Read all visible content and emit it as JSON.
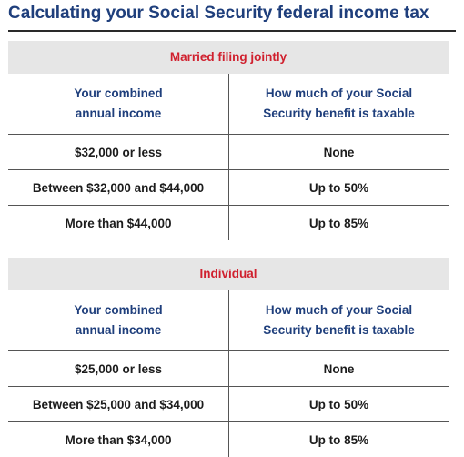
{
  "title": "Calculating your Social Security federal income tax",
  "tables": [
    {
      "section": "Married filing jointly",
      "col_left": [
        "Your combined",
        "annual income"
      ],
      "col_right": [
        "How much of your Social",
        "Security benefit is taxable"
      ],
      "rows": [
        {
          "income": "$32,000 or less",
          "taxable": "None"
        },
        {
          "income": "Between $32,000 and $44,000",
          "taxable": "Up to 50%"
        },
        {
          "income": "More than $44,000",
          "taxable": "Up to 85%"
        }
      ]
    },
    {
      "section": "Individual",
      "col_left": [
        "Your combined",
        "annual income"
      ],
      "col_right": [
        "How much of your Social",
        "Security benefit is taxable"
      ],
      "rows": [
        {
          "income": "$25,000 or less",
          "taxable": "None"
        },
        {
          "income": "Between $25,000 and $34,000",
          "taxable": "Up to 50%"
        },
        {
          "income": "More than $34,000",
          "taxable": "Up to 85%"
        }
      ]
    }
  ],
  "colors": {
    "title": "#1f3f7c",
    "section_header_text": "#d0202e",
    "section_header_bg": "#e6e6e6",
    "column_header_text": "#1f3f7c",
    "body_text": "#1c1c1c"
  }
}
